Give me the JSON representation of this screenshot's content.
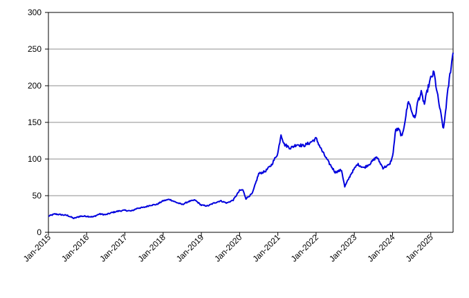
{
  "chart_data": {
    "type": "line",
    "title": "",
    "xlabel": "",
    "ylabel": "",
    "ylim": [
      0,
      300
    ],
    "xlim": [
      "2015-01",
      "2025-08"
    ],
    "grid": "horizontal",
    "legend": "none",
    "y_ticks": [
      "0",
      "50",
      "100",
      "150",
      "200",
      "250",
      "300"
    ],
    "x_ticks": [
      "Jan-2015",
      "Jan-2016",
      "Jan-2017",
      "Jan-2018",
      "Jan-2019",
      "Jan-2020",
      "Jan-2021",
      "Jan-2022",
      "Jan-2023",
      "Jan-2024",
      "Jan-2025"
    ],
    "series": [
      {
        "color": "#0000dd",
        "x": [
          "2015-01",
          "2015-03",
          "2015-05",
          "2015-07",
          "2015-09",
          "2015-11",
          "2016-01",
          "2016-03",
          "2016-05",
          "2016-07",
          "2016-09",
          "2016-11",
          "2017-01",
          "2017-03",
          "2017-05",
          "2017-07",
          "2017-09",
          "2017-11",
          "2018-01",
          "2018-03",
          "2018-05",
          "2018-07",
          "2018-09",
          "2018-11",
          "2019-01",
          "2019-03",
          "2019-05",
          "2019-07",
          "2019-09",
          "2019-11",
          "2020-01",
          "2020-02",
          "2020-03",
          "2020-05",
          "2020-07",
          "2020-09",
          "2020-11",
          "2021-01",
          "2021-02",
          "2021-03",
          "2021-05",
          "2021-07",
          "2021-09",
          "2021-11",
          "2022-01",
          "2022-03",
          "2022-05",
          "2022-07",
          "2022-09",
          "2022-10",
          "2022-12",
          "2023-02",
          "2023-04",
          "2023-06",
          "2023-08",
          "2023-10",
          "2023-12",
          "2024-01",
          "2024-02",
          "2024-03",
          "2024-04",
          "2024-05",
          "2024-06",
          "2024-07",
          "2024-08",
          "2024-09",
          "2024-10",
          "2024-11",
          "2024-12",
          "2025-01",
          "2025-02",
          "2025-03",
          "2025-04",
          "2025-05",
          "2025-06",
          "2025-07",
          "2025-08"
        ],
        "values": [
          22,
          25,
          24,
          23,
          19,
          22,
          22,
          21,
          25,
          24,
          27,
          29,
          30,
          29,
          33,
          34,
          37,
          38,
          43,
          45,
          41,
          38,
          42,
          44,
          37,
          36,
          40,
          43,
          40,
          44,
          57,
          58,
          46,
          53,
          80,
          83,
          92,
          108,
          134,
          120,
          115,
          120,
          118,
          122,
          128,
          110,
          95,
          82,
          85,
          62,
          80,
          93,
          88,
          94,
          103,
          88,
          92,
          103,
          140,
          140,
          130,
          155,
          180,
          165,
          155,
          180,
          190,
          175,
          195,
          210,
          218,
          190,
          165,
          140,
          180,
          215,
          245
        ]
      }
    ]
  }
}
